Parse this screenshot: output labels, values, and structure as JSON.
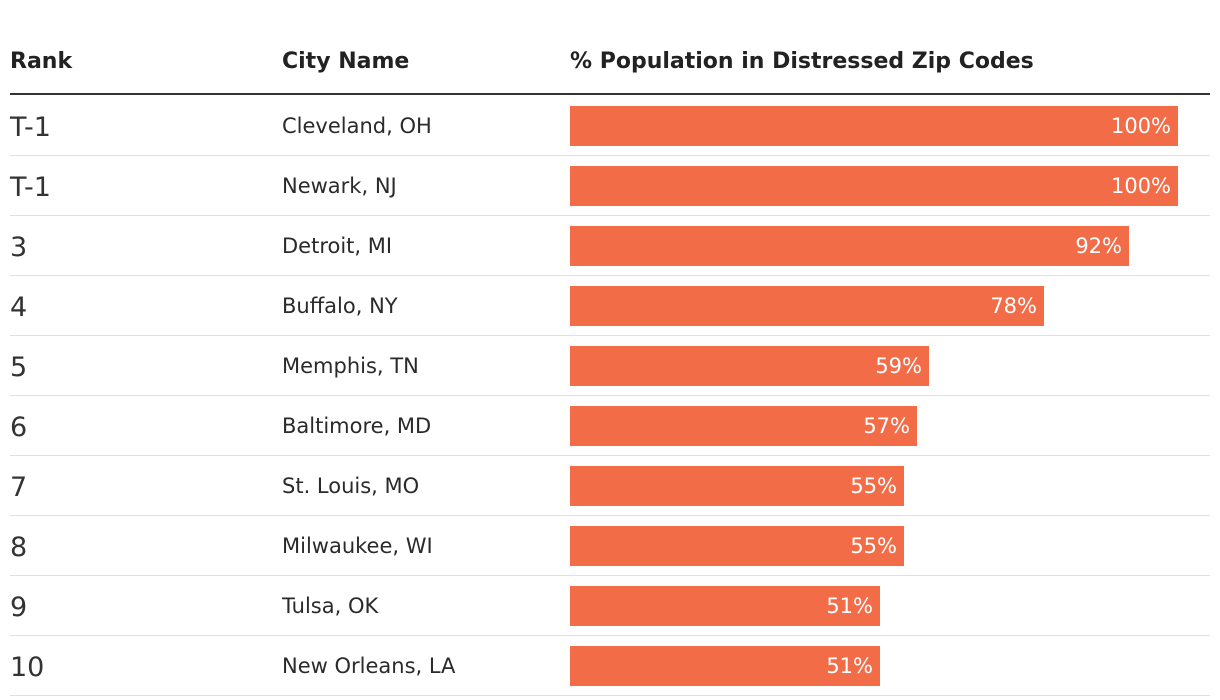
{
  "chart_data": {
    "type": "bar",
    "orientation": "horizontal",
    "columns": {
      "rank": "Rank",
      "city": "City Name",
      "value": "% Population in Distressed Zip Codes"
    },
    "bar_color": "#f26c47",
    "xlim": [
      0,
      100
    ],
    "rows": [
      {
        "rank": "T-1",
        "city": "Cleveland, OH",
        "value": 100,
        "label": "100%"
      },
      {
        "rank": "T-1",
        "city": "Newark, NJ",
        "value": 100,
        "label": "100%"
      },
      {
        "rank": "3",
        "city": "Detroit, MI",
        "value": 92,
        "label": "92%"
      },
      {
        "rank": "4",
        "city": "Buffalo, NY",
        "value": 78,
        "label": "78%"
      },
      {
        "rank": "5",
        "city": "Memphis, TN",
        "value": 59,
        "label": "59%"
      },
      {
        "rank": "6",
        "city": "Baltimore, MD",
        "value": 57,
        "label": "57%"
      },
      {
        "rank": "7",
        "city": "St. Louis, MO",
        "value": 55,
        "label": "55%"
      },
      {
        "rank": "8",
        "city": "Milwaukee, WI",
        "value": 55,
        "label": "55%"
      },
      {
        "rank": "9",
        "city": "Tulsa, OK",
        "value": 51,
        "label": "51%"
      },
      {
        "rank": "10",
        "city": "New Orleans, LA",
        "value": 51,
        "label": "51%"
      }
    ]
  }
}
